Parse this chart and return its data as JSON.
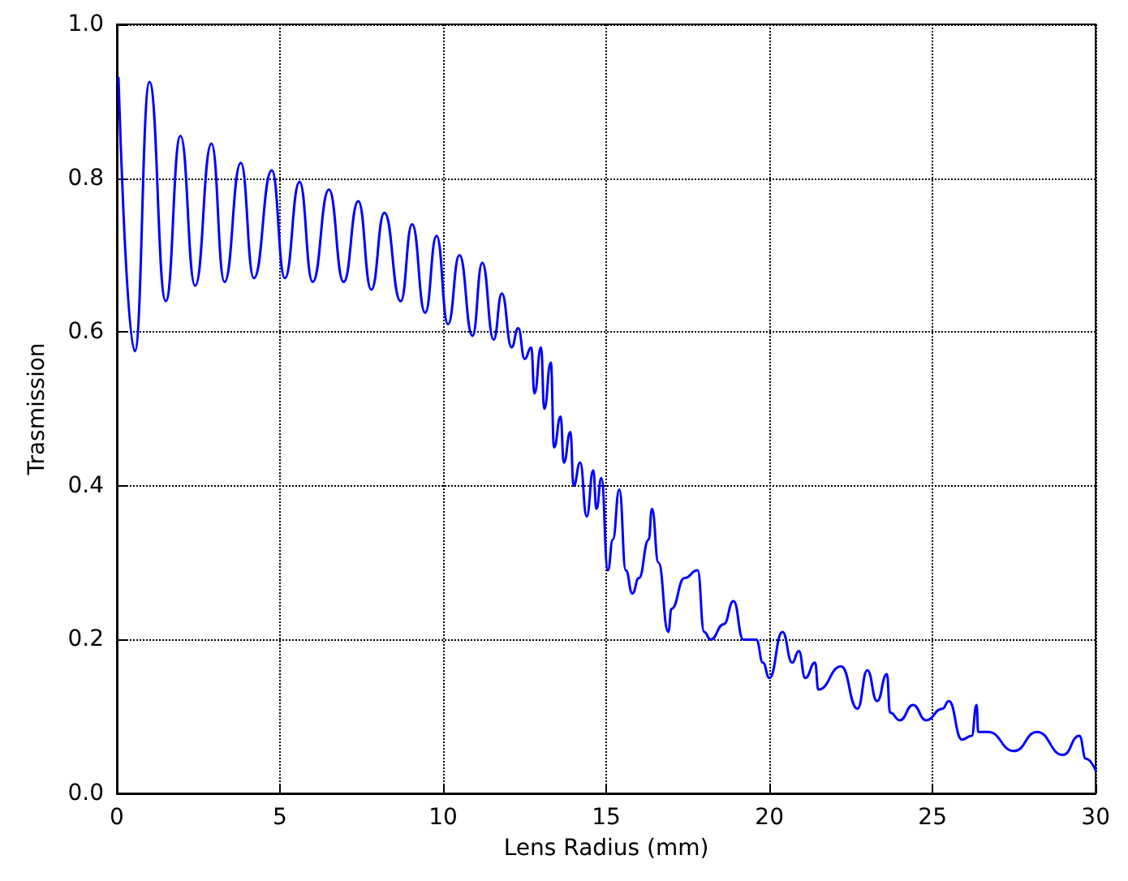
{
  "chart_data": {
    "type": "line",
    "xlabel": "Lens Radius (mm)",
    "ylabel": "Trasmission",
    "xlim": [
      0,
      30
    ],
    "xticks": [
      0,
      5,
      10,
      15,
      20,
      25,
      30
    ],
    "ylim": [
      0,
      1
    ],
    "yticks": [
      {
        "value": 0,
        "label": "0.0"
      },
      0.2,
      0.4,
      0.6,
      0.8,
      {
        "value": 1,
        "label": "1.0"
      }
    ],
    "grid": true,
    "marker": "none",
    "line_style": "solid",
    "series": [
      {
        "color": "#0000ff",
        "x": [
          0.05,
          0.55,
          1.0,
          1.5,
          1.95,
          2.4,
          2.9,
          3.3,
          3.8,
          4.2,
          4.75,
          5.15,
          5.6,
          6.0,
          6.5,
          6.95,
          7.4,
          7.8,
          8.2,
          8.7,
          9.05,
          9.45,
          9.8,
          10.15,
          10.5,
          10.9,
          11.2,
          11.55,
          11.8,
          12.1,
          12.3,
          12.5,
          12.7,
          12.8,
          13.0,
          13.1,
          13.3,
          13.4,
          13.6,
          13.7,
          13.9,
          14.0,
          14.2,
          14.4,
          14.6,
          14.7,
          14.85,
          15.05,
          15.2,
          15.4,
          15.6,
          15.8,
          16.0,
          16.3,
          16.4,
          16.6,
          16.9,
          17.0,
          17.4,
          17.8,
          18.0,
          18.2,
          18.6,
          18.9,
          19.2,
          19.6,
          19.8,
          20.0,
          20.4,
          20.7,
          20.9,
          21.1,
          21.4,
          21.5,
          22.2,
          22.7,
          23.0,
          23.3,
          23.6,
          23.7,
          24.0,
          24.4,
          24.8,
          25.3,
          25.5,
          25.9,
          26.2,
          26.35,
          26.4,
          26.7,
          27.5,
          28.2,
          29.0,
          29.5,
          29.7,
          30.0
        ],
        "values": [
          0.93,
          0.575,
          0.925,
          0.64,
          0.855,
          0.66,
          0.845,
          0.665,
          0.82,
          0.67,
          0.81,
          0.67,
          0.795,
          0.665,
          0.785,
          0.665,
          0.77,
          0.655,
          0.755,
          0.64,
          0.74,
          0.625,
          0.725,
          0.61,
          0.7,
          0.595,
          0.69,
          0.59,
          0.65,
          0.58,
          0.605,
          0.565,
          0.58,
          0.52,
          0.58,
          0.5,
          0.56,
          0.45,
          0.49,
          0.43,
          0.47,
          0.4,
          0.43,
          0.36,
          0.42,
          0.37,
          0.41,
          0.29,
          0.33,
          0.395,
          0.29,
          0.26,
          0.28,
          0.33,
          0.37,
          0.3,
          0.21,
          0.24,
          0.28,
          0.29,
          0.21,
          0.2,
          0.22,
          0.25,
          0.2,
          0.2,
          0.17,
          0.15,
          0.21,
          0.17,
          0.185,
          0.15,
          0.17,
          0.135,
          0.165,
          0.11,
          0.16,
          0.12,
          0.155,
          0.105,
          0.095,
          0.115,
          0.095,
          0.11,
          0.12,
          0.07,
          0.075,
          0.115,
          0.08,
          0.08,
          0.055,
          0.08,
          0.05,
          0.075,
          0.045,
          0.03
        ]
      }
    ]
  }
}
